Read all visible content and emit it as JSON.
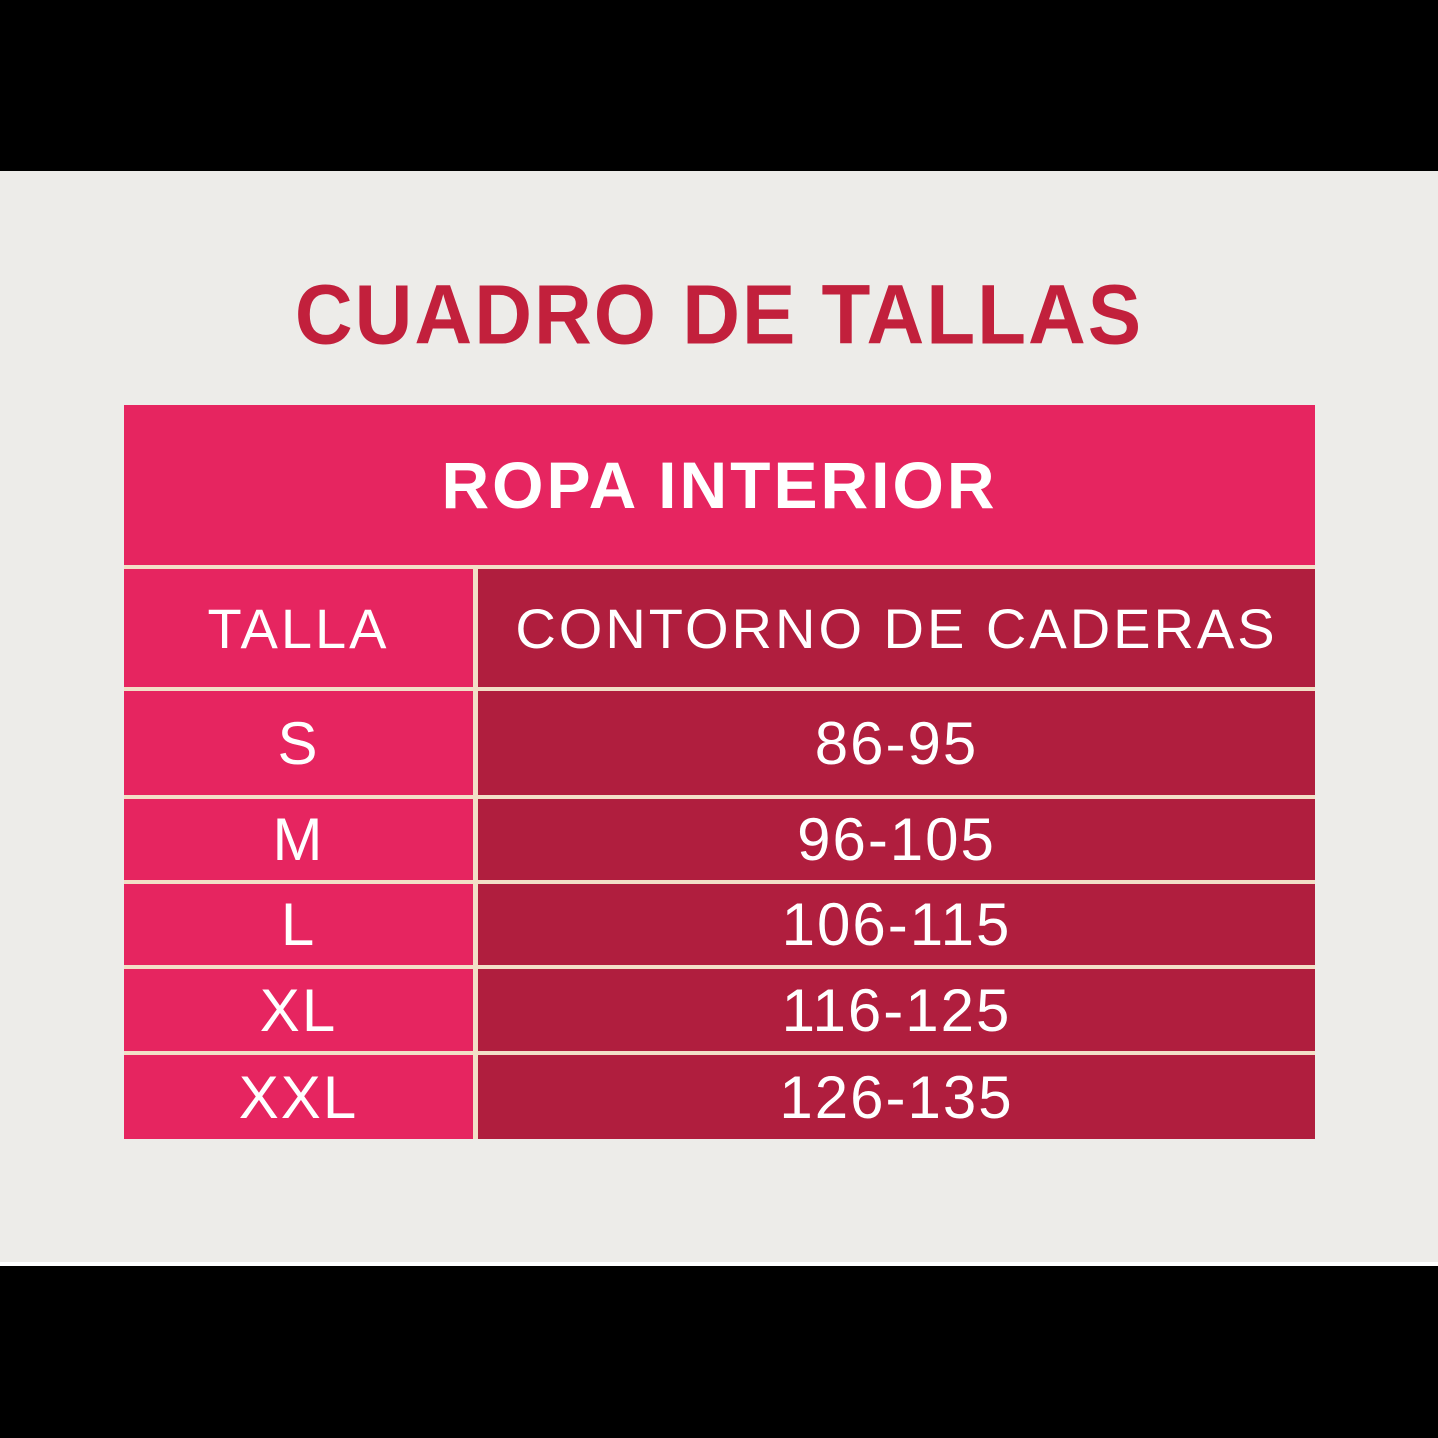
{
  "page": {
    "title": "CUADRO DE TALLAS"
  },
  "table": {
    "section_header": "ROPA INTERIOR",
    "columns": [
      {
        "label": "TALLA"
      },
      {
        "label": "CONTORNO DE CADERAS"
      }
    ],
    "rows": [
      {
        "talla": "S",
        "contorno": "86-95"
      },
      {
        "talla": "M",
        "contorno": "96-105"
      },
      {
        "talla": "L",
        "contorno": "106-115"
      },
      {
        "talla": "XL",
        "contorno": "116-125"
      },
      {
        "talla": "XXL",
        "contorno": "126-135"
      }
    ]
  },
  "colors": {
    "letterbox": "#000000",
    "canvas-bg": "#EDECE9",
    "strip-white": "#FFFFFF",
    "title-red": "#C2203C",
    "pink": "#E62560",
    "dark-red": "#B01E3E",
    "divider": "#F2DFC7",
    "text-white": "#FFFFFF"
  },
  "chart_data": {
    "type": "table",
    "title": "CUADRO DE TALLAS",
    "section": "ROPA INTERIOR",
    "columns": [
      "TALLA",
      "CONTORNO DE CADERAS"
    ],
    "rows": [
      [
        "S",
        "86-95"
      ],
      [
        "M",
        "96-105"
      ],
      [
        "L",
        "106-115"
      ],
      [
        "XL",
        "116-125"
      ],
      [
        "XXL",
        "126-135"
      ]
    ]
  }
}
